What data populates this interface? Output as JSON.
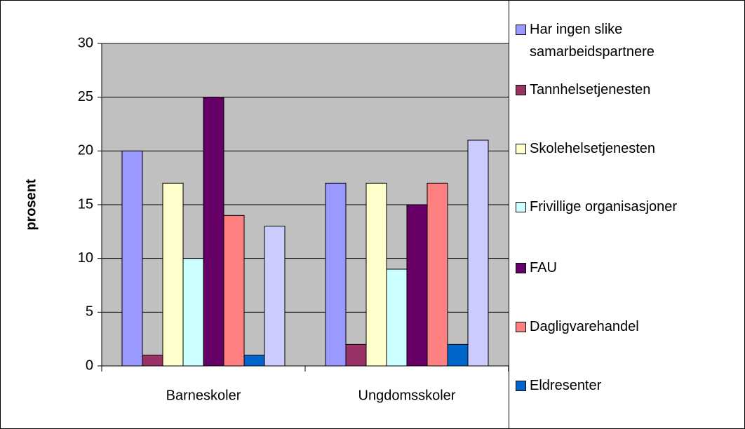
{
  "chart_data": {
    "type": "bar",
    "y_label": "prosent",
    "categories": [
      "Barneskoler",
      "Ungdomsskoler"
    ],
    "series": [
      {
        "name": "Har ingen slike samarbeidspartnere",
        "color": "#9999ff",
        "values": [
          20,
          17
        ]
      },
      {
        "name": "Tannhelsetjenesten",
        "color": "#993366",
        "values": [
          1,
          2
        ]
      },
      {
        "name": "Skolehelsetjenesten",
        "color": "#ffffcc",
        "values": [
          17,
          17
        ]
      },
      {
        "name": "Frivillige organisasjoner",
        "color": "#ccffff",
        "values": [
          10,
          9
        ]
      },
      {
        "name": "FAU",
        "color": "#660066",
        "values": [
          25,
          15
        ]
      },
      {
        "name": "Dagligvarehandel",
        "color": "#ff8080",
        "values": [
          14,
          17
        ]
      },
      {
        "name": "Eldresenter",
        "color": "#0066cc",
        "values": [
          1,
          2
        ]
      },
      {
        "color": "#ccccff",
        "values": [
          13,
          21
        ]
      }
    ],
    "ylim": [
      0,
      30
    ],
    "yticks": [
      0,
      5,
      10,
      15,
      20,
      25,
      30
    ],
    "grid": true,
    "legend": "right"
  }
}
